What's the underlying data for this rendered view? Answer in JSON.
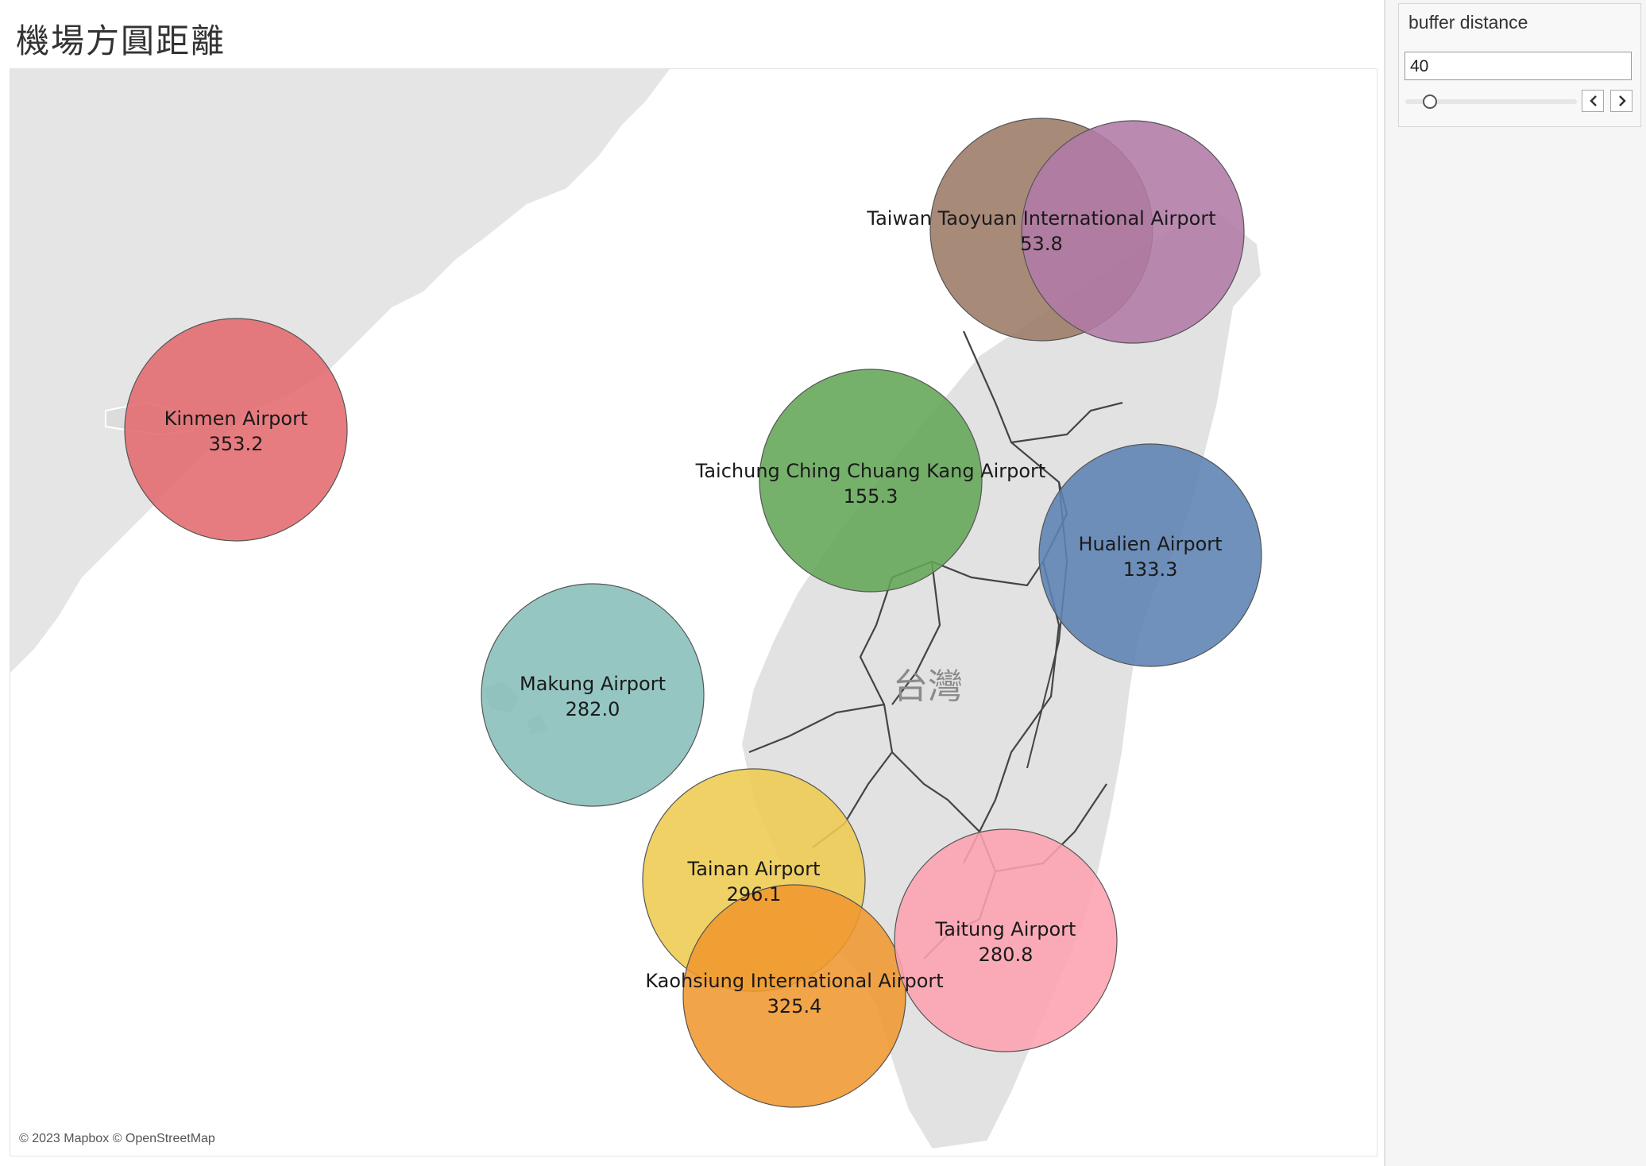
{
  "header": {
    "title": "機場方圓距離"
  },
  "map": {
    "country_label": "台灣",
    "credits": "© 2023 Mapbox © OpenStreetMap",
    "airports": [
      {
        "name": "Taiwan Taoyuan International Airport",
        "value": "53.8",
        "color": "#9c7a67",
        "stroke": "#555555"
      },
      {
        "name": "Kinmen Airport",
        "value": "353.2",
        "color": "#e46a6e",
        "stroke": "#555555"
      },
      {
        "name": "Taichung Ching Chuang Kang Airport",
        "value": "155.3",
        "color": "#63a657",
        "stroke": "#555555"
      },
      {
        "name": "Hualien Airport",
        "value": "133.3",
        "color": "#5b82b2",
        "stroke": "#555555"
      },
      {
        "name": "Makung Airport",
        "value": "282.0",
        "color": "#86beba",
        "stroke": "#555555"
      },
      {
        "name": "Tainan Airport",
        "value": "296.1",
        "color": "#edcb50",
        "stroke": "#555555"
      },
      {
        "name": "Kaohsiung International Airport",
        "value": "325.4",
        "color": "#f0972f",
        "stroke": "#555555"
      },
      {
        "name": "Taitung Airport",
        "value": "280.8",
        "color": "#fda2b0",
        "stroke": "#555555"
      },
      {
        "name": "",
        "value": "",
        "color": "#b07aa6",
        "stroke": "#555555"
      }
    ]
  },
  "parameter": {
    "label": "buffer distance",
    "value": "40",
    "slider_fraction": 0.02,
    "prev_icon": "chevron-left-icon",
    "next_icon": "chevron-right-icon"
  }
}
